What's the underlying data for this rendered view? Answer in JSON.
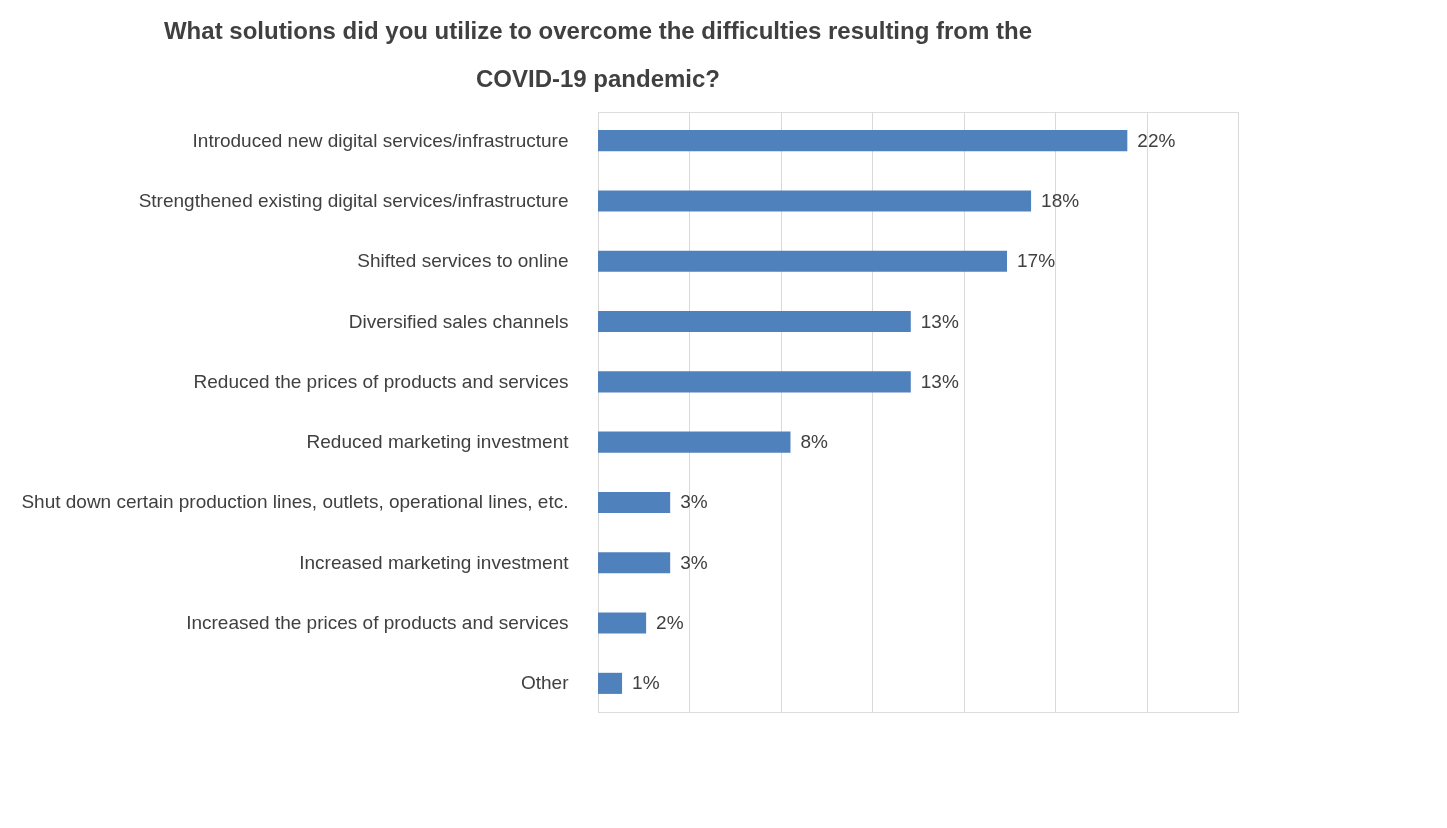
{
  "chart_data": {
    "type": "bar",
    "orientation": "horizontal",
    "title": [
      "What solutions did you utilize to overcome the difficulties resulting from the",
      "COVID-19 pandemic?"
    ],
    "categories": [
      "Introduced new digital services/infrastructure",
      "Strengthened existing digital services/infrastructure",
      "Shifted services to online",
      "Diversified sales channels",
      "Reduced the prices of products and services",
      "Reduced marketing investment",
      "Shut down certain production lines, outlets, operational lines, etc.",
      "Increased marketing investment",
      "Increased the prices of products and services",
      "Other"
    ],
    "values": [
      22,
      18,
      17,
      13,
      13,
      8,
      3,
      3,
      2,
      1
    ],
    "value_labels": [
      "22%",
      "18%",
      "17%",
      "13%",
      "13%",
      "8%",
      "3%",
      "3%",
      "2%",
      "1%"
    ],
    "color": "#4f81bd",
    "xlim": [
      0,
      26.6
    ],
    "xticks": [
      {
        "value": 0,
        "label": null
      },
      {
        "value": 3.8,
        "label": null
      },
      {
        "value": 7.6,
        "label": null
      },
      {
        "value": 11.4,
        "label": null
      },
      {
        "value": 15.2,
        "label": null
      },
      {
        "value": 19,
        "label": null
      },
      {
        "value": 22.8,
        "label": null
      },
      {
        "value": 26.6,
        "label": null
      }
    ],
    "grid": "x",
    "tick_labels": "y"
  }
}
